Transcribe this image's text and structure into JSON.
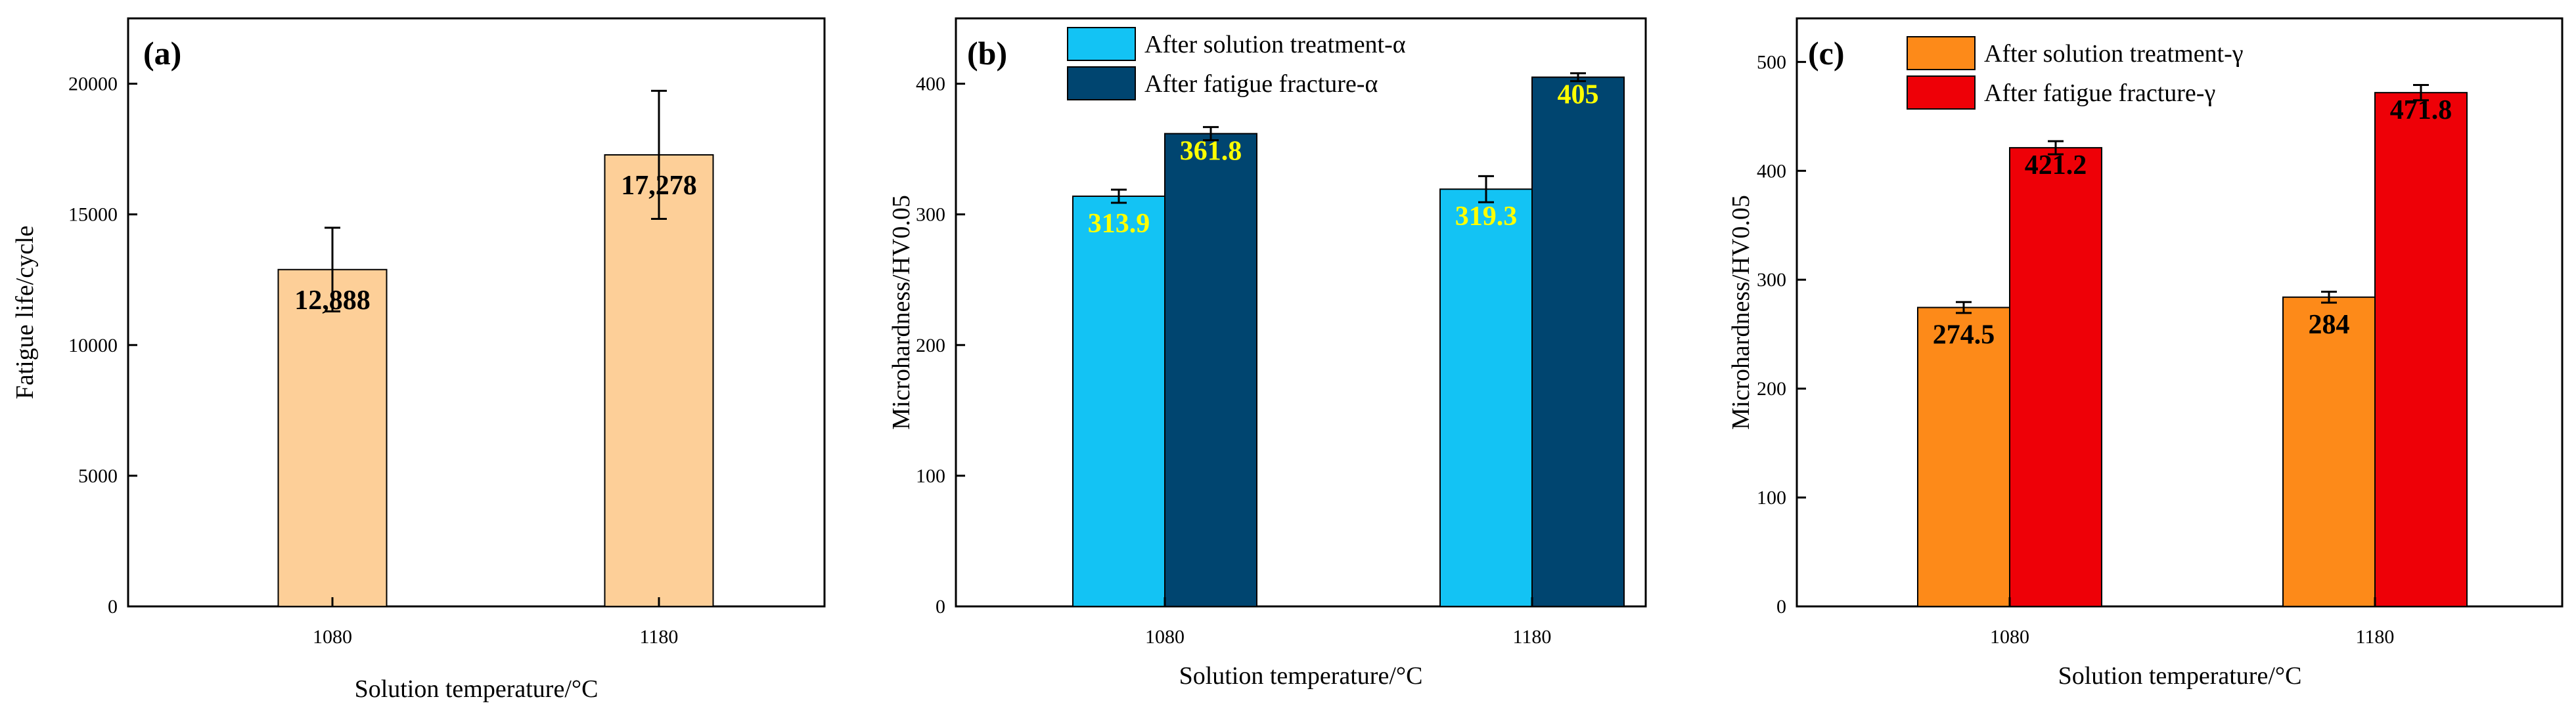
{
  "chart_data": [
    {
      "panel": "(a)",
      "type": "bar",
      "categories": [
        "1080",
        "1180"
      ],
      "series": [
        {
          "name": "Fatigue life",
          "values": [
            12888,
            17278
          ],
          "errors": [
            1600,
            2450
          ],
          "color": "#FDCF98",
          "label_color": "#000000"
        }
      ],
      "data_labels": [
        [
          "12,888",
          "17,278"
        ]
      ],
      "xlabel": "Solution temperature/°C",
      "ylabel": "Fatigue life/cycle",
      "ylim": [
        0,
        22500
      ],
      "yticks": [
        0,
        5000,
        10000,
        15000,
        20000
      ],
      "ytick_labels": [
        "0",
        "5000",
        "10000",
        "15000",
        "20000"
      ],
      "legend": []
    },
    {
      "panel": "(b)",
      "type": "bar",
      "categories": [
        "1080",
        "1180"
      ],
      "series": [
        {
          "name": "After solution treatment-α",
          "values": [
            313.9,
            319.3
          ],
          "errors": [
            5,
            10
          ],
          "color": "#13C3F4",
          "label_color": "#FFFF00"
        },
        {
          "name": "After fatigue fracture-α",
          "values": [
            361.8,
            405
          ],
          "errors": [
            5,
            3
          ],
          "color": "#004570",
          "label_color": "#FFFF00"
        }
      ],
      "data_labels": [
        [
          "313.9",
          "319.3"
        ],
        [
          "361.8",
          "405"
        ]
      ],
      "xlabel": "Solution temperature/°C",
      "ylabel": "Microhardness/HV0.05",
      "ylim": [
        0,
        450
      ],
      "yticks": [
        0,
        100,
        200,
        300,
        400
      ],
      "ytick_labels": [
        "0",
        "100",
        "200",
        "300",
        "400"
      ],
      "legend": [
        "After solution treatment-α",
        "After fatigue fracture-α"
      ]
    },
    {
      "panel": "(c)",
      "type": "bar",
      "categories": [
        "1080",
        "1180"
      ],
      "series": [
        {
          "name": "After solution treatment-γ",
          "values": [
            274.5,
            284
          ],
          "errors": [
            5,
            5
          ],
          "color": "#FD8A19",
          "label_color": "#000000"
        },
        {
          "name": "After fatigue fracture-γ",
          "values": [
            421.2,
            471.8
          ],
          "errors": [
            6,
            7
          ],
          "color": "#EE0007",
          "label_color": "#000000"
        }
      ],
      "data_labels": [
        [
          "274.5",
          "284"
        ],
        [
          "421.2",
          "471.8"
        ]
      ],
      "xlabel": "Solution temperature/°C",
      "ylabel": "Microhardness/HV0.05",
      "ylim": [
        0,
        540
      ],
      "yticks": [
        0,
        100,
        200,
        300,
        400,
        500
      ],
      "ytick_labels": [
        "0",
        "100",
        "200",
        "300",
        "400",
        "500"
      ],
      "legend": [
        "After solution treatment-γ",
        "After fatigue fracture-γ"
      ]
    }
  ]
}
